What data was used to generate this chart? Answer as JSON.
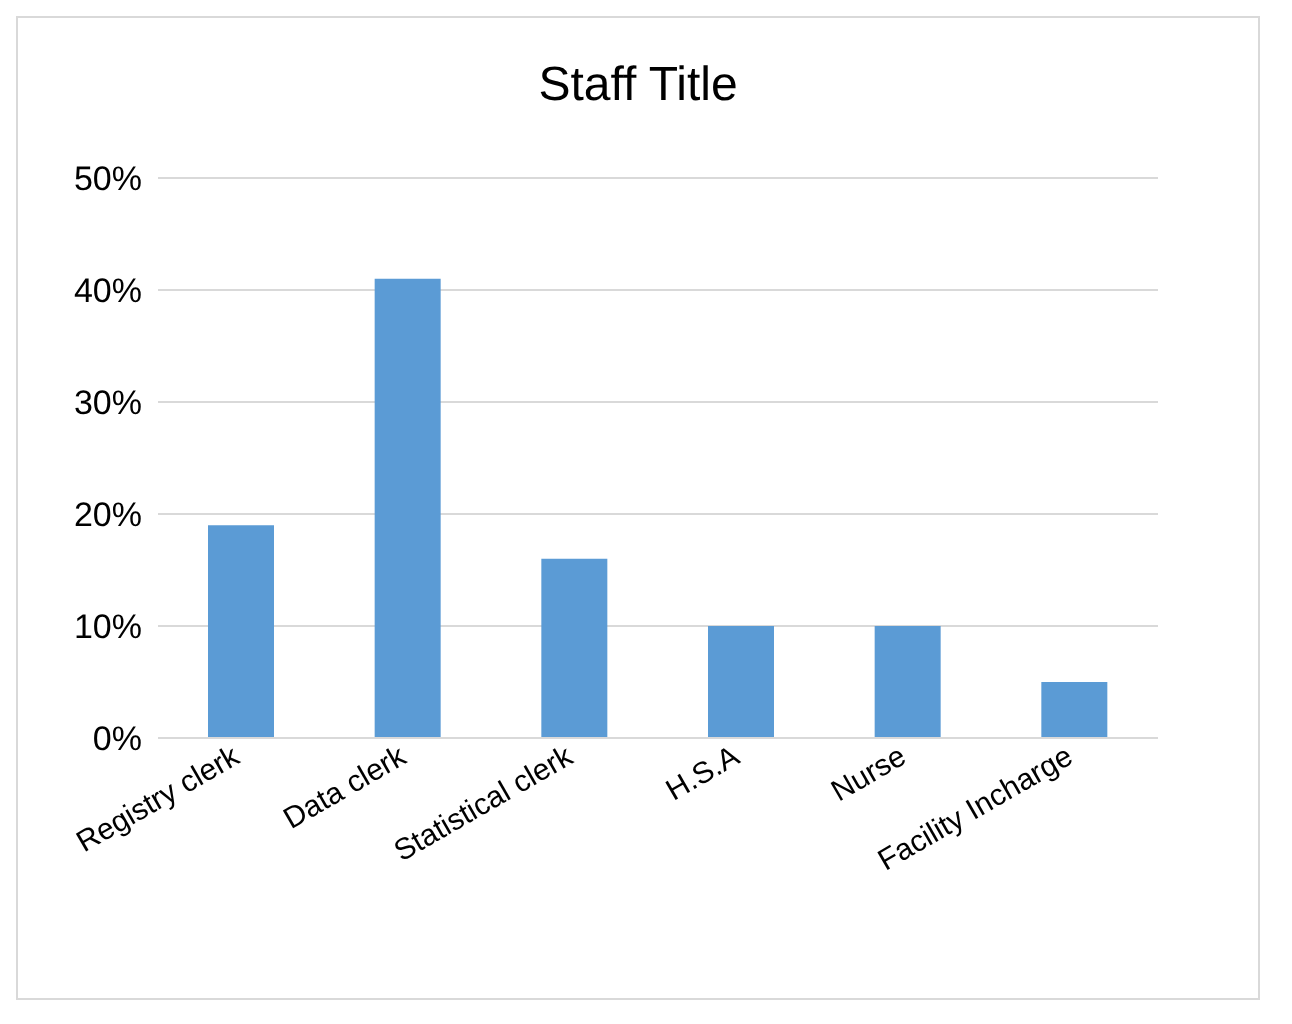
{
  "chart_data": {
    "type": "bar",
    "title": "Staff Title",
    "categories": [
      "Registry clerk",
      "Data clerk",
      "Statistical clerk",
      "H.S.A",
      "Nurse",
      "Facility Incharge"
    ],
    "values": [
      0.19,
      0.41,
      0.16,
      0.1,
      0.1,
      0.05
    ],
    "color": "#5b9bd5",
    "ylim": [
      0,
      0.5
    ],
    "yticks": [
      {
        "value": 0,
        "label": "0%"
      },
      {
        "value": 0.1,
        "label": "10%"
      },
      {
        "value": 0.2,
        "label": "20%"
      },
      {
        "value": 0.3,
        "label": "30%"
      },
      {
        "value": 0.4,
        "label": "40%"
      },
      {
        "value": 0.5,
        "label": "50%"
      }
    ],
    "grid": "y"
  }
}
